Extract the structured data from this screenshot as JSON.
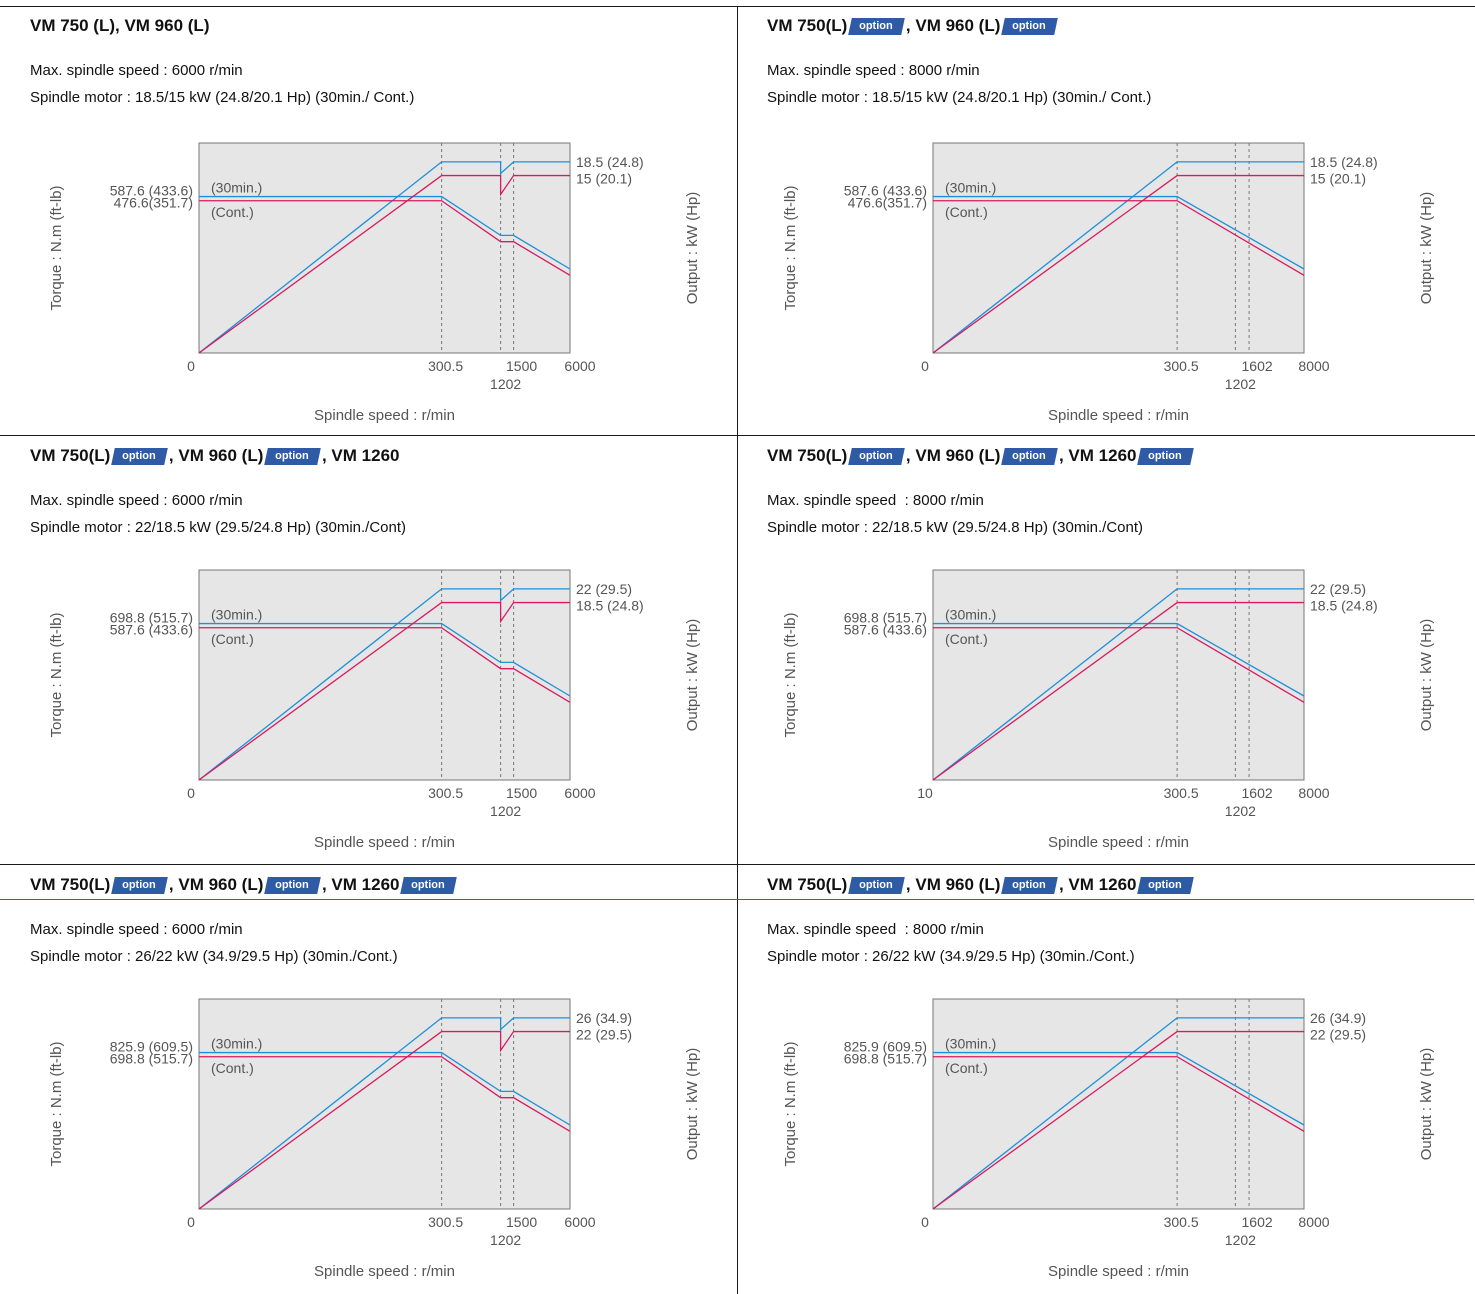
{
  "colors": {
    "peak_30min": "#1e90d8",
    "continuous": "#d81b60",
    "plot_bg": "#e6e6e6",
    "badge": "#2e5aa6"
  },
  "panels": [
    {
      "title_parts": [
        "VM 750 (L), VM 960 (L)"
      ],
      "spec_speed": "Max. spindle speed : 6000 r/min",
      "spec_motor": "Spindle motor : 18.5/15 kW (24.8/20.1 Hp) (30min./ Cont.)",
      "chart_data": {
        "type": "line",
        "xlabel": "Spindle speed : r/min",
        "ylabel": "Torque : N.m (ft-lb)",
        "y2label": "Output : kW (Hp)",
        "x_ticks": [
          "0",
          "300.5",
          "1202",
          "1500",
          "6000"
        ],
        "torque_labels": [
          "587.6 (433.6)",
          "476.6(351.7)"
        ],
        "output_labels": [
          "18.5 (24.8)",
          "15 (20.1)"
        ],
        "curve_labels": [
          "(30min.)",
          "(Cont.)"
        ],
        "series": [
          {
            "name": "(30min.)",
            "torque": 587.6,
            "output": 18.5
          },
          {
            "name": "(Cont.)",
            "torque": 476.6,
            "output": 15
          }
        ]
      }
    },
    {
      "title_parts": [
        "VM 750(L)",
        "option",
        ", VM 960 (L)",
        "option"
      ],
      "spec_speed": "Max. spindle speed : 8000 r/min",
      "spec_motor": "Spindle motor : 18.5/15 kW (24.8/20.1 Hp) (30min./ Cont.)",
      "chart_data": {
        "type": "line",
        "xlabel": "Spindle speed : r/min",
        "ylabel": "Torque : N.m (ft-lb)",
        "y2label": "Output : kW (Hp)",
        "x_ticks": [
          "0",
          "300.5",
          "1202",
          "1602",
          "8000"
        ],
        "torque_labels": [
          "587.6 (433.6)",
          "476.6(351.7)"
        ],
        "output_labels": [
          "18.5 (24.8)",
          "15 (20.1)"
        ],
        "curve_labels": [
          "(30min.)",
          "(Cont.)"
        ],
        "series": [
          {
            "name": "(30min.)",
            "torque": 587.6,
            "output": 18.5
          },
          {
            "name": "(Cont.)",
            "torque": 476.6,
            "output": 15
          }
        ]
      }
    },
    {
      "title_parts": [
        "VM 750(L)",
        "option",
        ", VM 960 (L)",
        "option",
        ", VM 1260"
      ],
      "spec_speed": "Max. spindle speed : 6000 r/min",
      "spec_motor": "Spindle motor : 22/18.5 kW (29.5/24.8 Hp) (30min./Cont)",
      "chart_data": {
        "type": "line",
        "xlabel": "Spindle speed : r/min",
        "ylabel": "Torque : N.m (ft-lb)",
        "y2label": "Output : kW (Hp)",
        "x_ticks": [
          "0",
          "300.5",
          "1202",
          "1500",
          "6000"
        ],
        "torque_labels": [
          "698.8 (515.7)",
          "587.6 (433.6)"
        ],
        "output_labels": [
          "22 (29.5)",
          "18.5 (24.8)"
        ],
        "curve_labels": [
          "(30min.)",
          "(Cont.)"
        ],
        "series": [
          {
            "name": "(30min.)",
            "torque": 698.8,
            "output": 22
          },
          {
            "name": "(Cont.)",
            "torque": 587.6,
            "output": 18.5
          }
        ]
      }
    },
    {
      "title_parts": [
        "VM 750(L)",
        "option",
        ", VM 960 (L)",
        "option",
        ", VM 1260",
        "option"
      ],
      "spec_speed": "Max. spindle speed  : 8000 r/min",
      "spec_motor": "Spindle motor : 22/18.5 kW (29.5/24.8 Hp) (30min./Cont)",
      "chart_data": {
        "type": "line",
        "xlabel": "Spindle speed : r/min",
        "ylabel": "Torque : N.m (ft-lb)",
        "y2label": "Output : kW (Hp)",
        "x_ticks": [
          "10",
          "300.5",
          "1202",
          "1602",
          "8000"
        ],
        "torque_labels": [
          "698.8 (515.7)",
          "587.6 (433.6)"
        ],
        "output_labels": [
          "22 (29.5)",
          "18.5 (24.8)"
        ],
        "curve_labels": [
          "(30min.)",
          "(Cont.)"
        ],
        "series": [
          {
            "name": "(30min.)",
            "torque": 698.8,
            "output": 22
          },
          {
            "name": "(Cont.)",
            "torque": 587.6,
            "output": 18.5
          }
        ]
      }
    },
    {
      "title_parts": [
        "VM 750(L)",
        "option",
        ", VM 960 (L)",
        "option",
        ", VM 1260",
        "option"
      ],
      "spec_speed": "Max. spindle speed : 6000 r/min",
      "spec_motor": "Spindle motor : 26/22 kW (34.9/29.5 Hp) (30min./Cont.)",
      "chart_data": {
        "type": "line",
        "xlabel": "Spindle speed : r/min",
        "ylabel": "Torque : N.m (ft-lb)",
        "y2label": "Output : kW (Hp)",
        "x_ticks": [
          "0",
          "300.5",
          "1202",
          "1500",
          "6000"
        ],
        "torque_labels": [
          "825.9 (609.5)",
          "698.8 (515.7)"
        ],
        "output_labels": [
          "26 (34.9)",
          "22 (29.5)"
        ],
        "curve_labels": [
          "(30min.)",
          "(Cont.)"
        ],
        "series": [
          {
            "name": "(30min.)",
            "torque": 825.9,
            "output": 26
          },
          {
            "name": "(Cont.)",
            "torque": 698.8,
            "output": 22
          }
        ]
      }
    },
    {
      "title_parts": [
        "VM 750(L)",
        "option",
        ", VM 960 (L)",
        "option",
        ", VM 1260",
        "option"
      ],
      "spec_speed": "Max. spindle speed  : 8000 r/min",
      "spec_motor": "Spindle motor : 26/22 kW (34.9/29.5 Hp) (30min./Cont.)",
      "chart_data": {
        "type": "line",
        "xlabel": "Spindle speed : r/min",
        "ylabel": "Torque : N.m (ft-lb)",
        "y2label": "Output : kW (Hp)",
        "x_ticks": [
          "0",
          "300.5",
          "1202",
          "1602",
          "8000"
        ],
        "torque_labels": [
          "825.9 (609.5)",
          "698.8 (515.7)"
        ],
        "output_labels": [
          "26 (34.9)",
          "22 (29.5)"
        ],
        "curve_labels": [
          "(30min.)",
          "(Cont.)"
        ],
        "series": [
          {
            "name": "(30min.)",
            "torque": 825.9,
            "output": 26
          },
          {
            "name": "(Cont.)",
            "torque": 698.8,
            "output": 22
          }
        ]
      }
    }
  ]
}
